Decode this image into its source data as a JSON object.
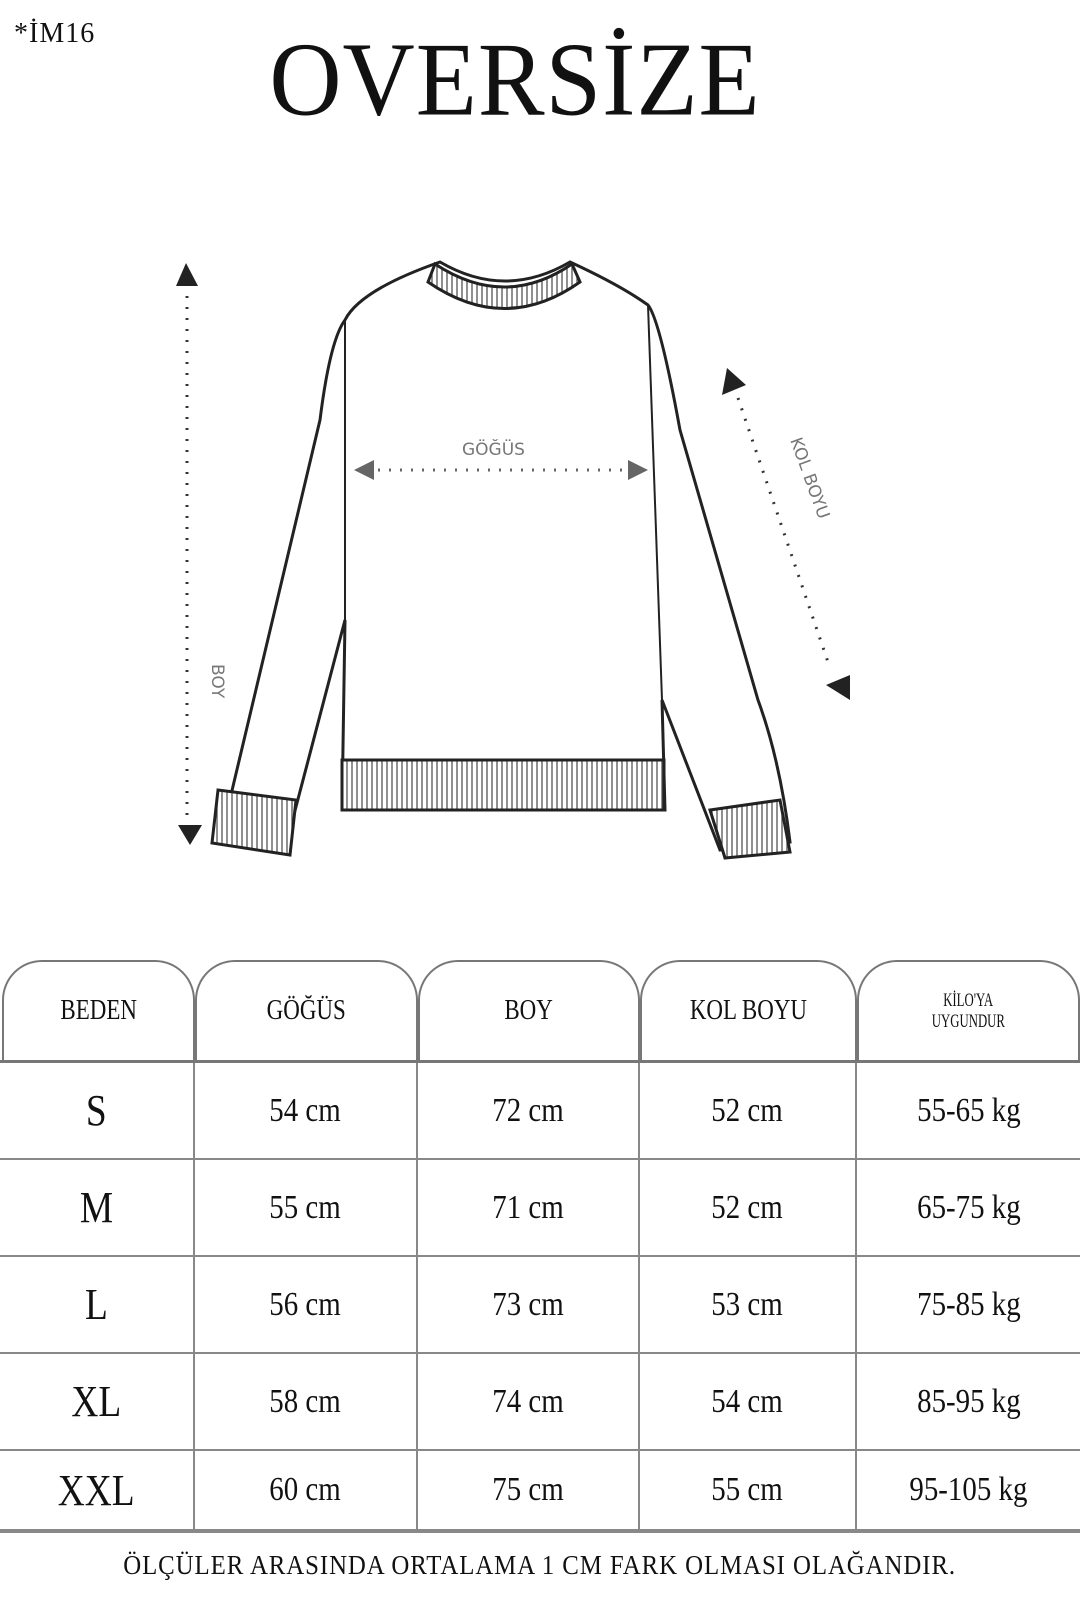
{
  "code": "*İM16",
  "title": "OVERSİZE",
  "diagram": {
    "chest_label": "GÖĞÜS",
    "length_label": "BOY",
    "sleeve_label": "KOL BOYU"
  },
  "table": {
    "headers": [
      "BEDEN",
      "GÖĞÜS",
      "BOY",
      "KOL BOYU",
      "KİLO'YA UYGUNDUR"
    ],
    "headers_weight": [
      "KİLO'YA",
      "UYGUNDUR"
    ],
    "rows": [
      [
        "S",
        "54 cm",
        "72 cm",
        "52  cm",
        "55-65 kg"
      ],
      [
        "M",
        "55 cm",
        "71 cm",
        "52 cm",
        "65-75 kg"
      ],
      [
        "L",
        "56 cm",
        "73 cm",
        "53 cm",
        "75-85 kg"
      ],
      [
        "XL",
        "58 cm",
        "74 cm",
        "54 cm",
        "85-95 kg"
      ],
      [
        "XXL",
        "60 cm",
        "75 cm",
        "55 cm",
        "95-105 kg"
      ]
    ]
  },
  "note": "ÖLÇÜLER ARASINDA ORTALAMA 1 CM FARK OLMASI OLAĞANDIR."
}
